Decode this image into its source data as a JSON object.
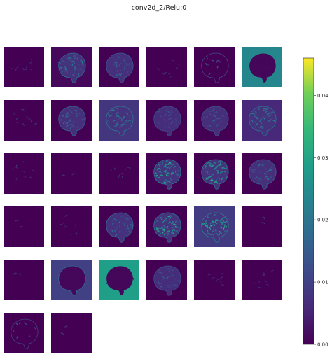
{
  "chart_data": {
    "type": "heatmap",
    "title": "conv2d_2/Relu:0",
    "colormap": "viridis",
    "colorbar": {
      "vmin": 0.0,
      "vmax": 0.046,
      "ticks": [
        "0.00",
        "0.01",
        "0.02",
        "0.03",
        "0.04"
      ],
      "tick_values": [
        0.0,
        0.01,
        0.02,
        0.03,
        0.04
      ]
    },
    "grid": {
      "rows": 6,
      "cols": 6,
      "panel_count": 32
    },
    "panels": [
      {
        "index": 0,
        "background": 0.0,
        "brain_intensity": 0.15,
        "pattern": "sparse"
      },
      {
        "index": 1,
        "background": 0.001,
        "brain_intensity": 0.55,
        "pattern": "dense"
      },
      {
        "index": 2,
        "background": 0.0,
        "brain_intensity": 0.4,
        "pattern": "edges"
      },
      {
        "index": 3,
        "background": 0.0,
        "brain_intensity": 0.12,
        "pattern": "sparse"
      },
      {
        "index": 4,
        "background": 0.0,
        "brain_intensity": 0.25,
        "pattern": "outline"
      },
      {
        "index": 5,
        "background": 0.024,
        "brain_intensity": 0.8,
        "pattern": "dark"
      },
      {
        "index": 6,
        "background": 0.0,
        "brain_intensity": 0.22,
        "pattern": "sparse"
      },
      {
        "index": 7,
        "background": 0.0,
        "brain_intensity": 0.45,
        "pattern": "edges"
      },
      {
        "index": 8,
        "background": 0.008,
        "brain_intensity": 0.6,
        "pattern": "dense"
      },
      {
        "index": 9,
        "background": 0.0,
        "brain_intensity": 0.3,
        "pattern": "edges"
      },
      {
        "index": 10,
        "background": 0.0,
        "brain_intensity": 0.35,
        "pattern": "edges"
      },
      {
        "index": 11,
        "background": 0.006,
        "brain_intensity": 0.55,
        "pattern": "dense"
      },
      {
        "index": 12,
        "background": 0.0,
        "brain_intensity": 0.1,
        "pattern": "sparse"
      },
      {
        "index": 13,
        "background": 0.0,
        "brain_intensity": 0.03,
        "pattern": "blank"
      },
      {
        "index": 14,
        "background": 0.0,
        "brain_intensity": 0.18,
        "pattern": "sparse"
      },
      {
        "index": 15,
        "background": 0.0,
        "brain_intensity": 0.65,
        "pattern": "bright"
      },
      {
        "index": 16,
        "background": 0.0,
        "brain_intensity": 0.6,
        "pattern": "bright"
      },
      {
        "index": 17,
        "background": 0.0,
        "brain_intensity": 0.45,
        "pattern": "edges"
      },
      {
        "index": 18,
        "background": 0.0,
        "brain_intensity": 0.02,
        "pattern": "blank"
      },
      {
        "index": 19,
        "background": 0.0,
        "brain_intensity": 0.2,
        "pattern": "sparse"
      },
      {
        "index": 20,
        "background": 0.0,
        "brain_intensity": 0.5,
        "pattern": "edges"
      },
      {
        "index": 21,
        "background": 0.0,
        "brain_intensity": 0.6,
        "pattern": "bright"
      },
      {
        "index": 22,
        "background": 0.009,
        "brain_intensity": 0.7,
        "pattern": "bright"
      },
      {
        "index": 23,
        "background": 0.0,
        "brain_intensity": 0.05,
        "pattern": "blank"
      },
      {
        "index": 24,
        "background": 0.0,
        "brain_intensity": 0.02,
        "pattern": "blank"
      },
      {
        "index": 25,
        "background": 0.01,
        "brain_intensity": 0.5,
        "pattern": "dark"
      },
      {
        "index": 26,
        "background": 0.029,
        "brain_intensity": 0.85,
        "pattern": "dark"
      },
      {
        "index": 27,
        "background": 0.0,
        "brain_intensity": 0.3,
        "pattern": "edges"
      },
      {
        "index": 28,
        "background": 0.0,
        "brain_intensity": 0.08,
        "pattern": "sparse"
      },
      {
        "index": 29,
        "background": 0.0,
        "brain_intensity": 0.06,
        "pattern": "sparse"
      },
      {
        "index": 30,
        "background": 0.0,
        "brain_intensity": 0.2,
        "pattern": "outline"
      },
      {
        "index": 31,
        "background": 0.0,
        "brain_intensity": 0.03,
        "pattern": "blank"
      }
    ]
  }
}
